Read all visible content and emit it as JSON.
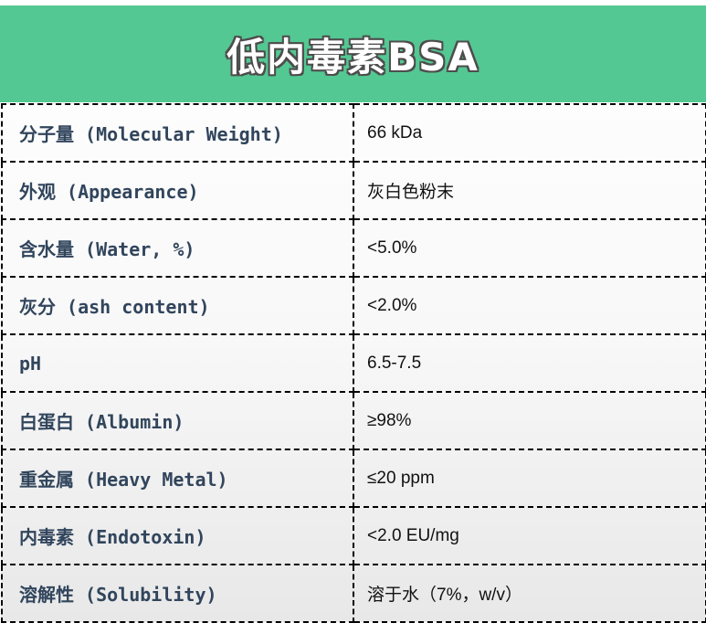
{
  "header": {
    "title": "低内毒素BSA",
    "accent_color": "#54c892",
    "title_color": "#ffffff",
    "title_outline_color": "#4d4d4d"
  },
  "table": {
    "label_color": "#31455c",
    "value_color": "#111111",
    "border_style": "black dashed",
    "rows": [
      {
        "label": "分子量 (Molecular Weight)",
        "value": "66 kDa"
      },
      {
        "label": "外观 (Appearance)",
        "value": "灰白色粉末"
      },
      {
        "label": "含水量 (Water, %)",
        "value": "<5.0%"
      },
      {
        "label": "灰分 (ash content)",
        "value": "<2.0%"
      },
      {
        "label": "pH",
        "value": "6.5-7.5"
      },
      {
        "label": "白蛋白 (Albumin)",
        "value": "≥98%"
      },
      {
        "label": "重金属 (Heavy Metal)",
        "value": "≤20 ppm"
      },
      {
        "label": "内毒素 (Endotoxin)",
        "value": "<2.0 EU/mg"
      },
      {
        "label": "溶解性 (Solubility)",
        "value": "溶于水（7%，w/v）"
      }
    ]
  }
}
